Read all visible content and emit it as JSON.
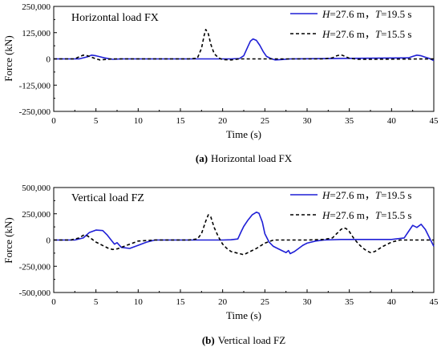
{
  "chart_data": [
    {
      "type": "line",
      "title": "Horizontal load FX",
      "caption_letter": "(a)",
      "caption_text": "Horizontal load FX",
      "xlabel": "Time (s)",
      "ylabel": "Force (kN)",
      "xlim": [
        0,
        45
      ],
      "ylim": [
        -250000,
        250000
      ],
      "xticks": [
        0,
        5,
        10,
        15,
        20,
        25,
        30,
        35,
        40,
        45
      ],
      "xtick_labels": [
        "0",
        "5",
        "10",
        "15",
        "20",
        "25",
        "30",
        "35",
        "40",
        "45"
      ],
      "yticks": [
        -250000,
        -125000,
        0,
        125000,
        250000
      ],
      "ytick_labels": [
        "-250,000",
        "-125,000",
        "0",
        "125,000",
        "250,000"
      ],
      "grid": false,
      "legend_position": "top-right",
      "series": [
        {
          "legend": {
            "h_var": "H",
            "h_rest": "=27.6 m，",
            "t_var": "T",
            "t_rest": "=19.5 s"
          },
          "color": "#1f1fd6",
          "style": "solid",
          "x": [
            0,
            3,
            4,
            4.5,
            5,
            5.5,
            6,
            6.5,
            7,
            8,
            20,
            21,
            22,
            22.5,
            23,
            23.3,
            23.6,
            24,
            24.4,
            24.8,
            25.2,
            25.7,
            26.2,
            27,
            28,
            42,
            42.5,
            43,
            43.5,
            44,
            44.5,
            45
          ],
          "y": [
            0,
            0,
            10000,
            18000,
            15000,
            10000,
            5000,
            1000,
            -2000,
            0,
            0,
            0,
            2000,
            15000,
            60000,
            85000,
            95000,
            88000,
            65000,
            35000,
            12000,
            2000,
            -5000,
            -3000,
            0,
            5000,
            12000,
            18000,
            15000,
            8000,
            2000,
            -8000
          ]
        },
        {
          "legend": {
            "h_var": "H",
            "h_rest": "=27.6 m，",
            "t_var": "T",
            "t_rest": "=15.5 s"
          },
          "color": "#000000",
          "style": "dashed",
          "x": [
            0,
            2.5,
            3,
            3.5,
            4,
            4.5,
            5,
            5.5,
            6,
            7,
            16,
            17,
            17.5,
            17.8,
            18,
            18.3,
            18.6,
            19,
            19.5,
            20,
            21,
            22,
            32,
            33,
            33.5,
            34,
            34.5,
            35,
            36,
            45
          ],
          "y": [
            0,
            0,
            10000,
            18000,
            15000,
            8000,
            0,
            -5000,
            -3000,
            0,
            0,
            3000,
            50000,
            110000,
            140000,
            120000,
            70000,
            25000,
            5000,
            -3000,
            -5000,
            0,
            0,
            5000,
            15000,
            20000,
            12000,
            3000,
            -2000,
            0
          ]
        }
      ]
    },
    {
      "type": "line",
      "title": "Vertical load FZ",
      "caption_letter": "(b)",
      "caption_text": "Vertical load FZ",
      "xlabel": "Time (s)",
      "ylabel": "Force (kN)",
      "xlim": [
        0,
        45
      ],
      "ylim": [
        -500000,
        500000
      ],
      "xticks": [
        0,
        5,
        10,
        15,
        20,
        25,
        30,
        35,
        40,
        45
      ],
      "xtick_labels": [
        "0",
        "5",
        "10",
        "15",
        "20",
        "25",
        "30",
        "35",
        "40",
        "45"
      ],
      "yticks": [
        -500000,
        -250000,
        0,
        250000,
        500000
      ],
      "ytick_labels": [
        "-500,000",
        "-250,000",
        "0",
        "250,000",
        "500,000"
      ],
      "grid": false,
      "legend_position": "top-right",
      "series": [
        {
          "legend": {
            "h_var": "H",
            "h_rest": "=27.6 m，",
            "t_var": "T",
            "t_rest": "=19.5 s"
          },
          "color": "#1f1fd6",
          "style": "solid",
          "x": [
            0,
            2.5,
            3.5,
            4.2,
            5,
            5.8,
            6.3,
            6.8,
            7.2,
            7.5,
            8,
            9,
            10,
            11,
            12,
            20,
            21,
            21.8,
            22.2,
            22.5,
            23,
            23.5,
            24,
            24.3,
            24.7,
            25,
            25.5,
            26,
            26.5,
            27,
            27.5,
            27.8,
            28,
            28.5,
            29,
            29.5,
            30,
            31,
            32,
            34,
            36,
            40,
            41.5,
            42,
            42.5,
            43,
            43.5,
            44,
            44.5,
            45
          ],
          "y": [
            0,
            0,
            20000,
            70000,
            95000,
            90000,
            50000,
            0,
            -40000,
            -25000,
            -70000,
            -80000,
            -50000,
            -20000,
            0,
            0,
            2000,
            10000,
            80000,
            130000,
            190000,
            240000,
            265000,
            255000,
            170000,
            60000,
            -20000,
            -60000,
            -80000,
            -100000,
            -120000,
            -100000,
            -130000,
            -110000,
            -80000,
            -50000,
            -30000,
            -10000,
            0,
            5000,
            5000,
            5000,
            20000,
            80000,
            140000,
            120000,
            150000,
            100000,
            20000,
            -60000
          ]
        },
        {
          "legend": {
            "h_var": "H",
            "h_rest": "=27.6 m，",
            "t_var": "T",
            "t_rest": "=15.5 s"
          },
          "color": "#000000",
          "style": "dashed",
          "x": [
            0,
            2,
            3,
            3.5,
            4,
            4.5,
            5,
            5.5,
            6,
            6.5,
            7,
            7.5,
            8,
            9,
            10,
            12,
            16,
            17,
            17.5,
            18,
            18.3,
            18.6,
            19,
            19.5,
            20,
            20.5,
            21,
            21.5,
            22,
            22.5,
            23,
            24,
            25,
            26,
            30,
            32,
            33,
            33.5,
            34,
            34.3,
            34.6,
            35,
            35.5,
            36,
            36.5,
            37,
            37.5,
            38,
            39,
            40,
            41,
            42,
            45
          ],
          "y": [
            0,
            0,
            20000,
            45000,
            40000,
            10000,
            -20000,
            -40000,
            -60000,
            -80000,
            -90000,
            -85000,
            -70000,
            -40000,
            -10000,
            0,
            0,
            10000,
            60000,
            180000,
            240000,
            220000,
            120000,
            30000,
            -40000,
            -80000,
            -110000,
            -120000,
            -130000,
            -140000,
            -120000,
            -80000,
            -30000,
            0,
            0,
            5000,
            20000,
            60000,
            100000,
            115000,
            110000,
            80000,
            20000,
            -30000,
            -70000,
            -100000,
            -120000,
            -110000,
            -60000,
            -20000,
            0,
            0,
            0
          ]
        }
      ]
    }
  ]
}
